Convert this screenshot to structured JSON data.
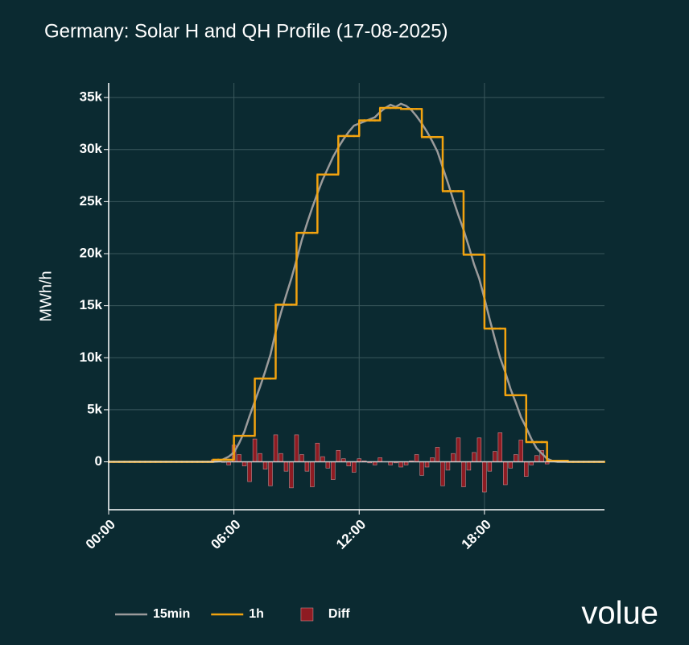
{
  "chart_data": {
    "type": "line",
    "title": "Germany: Solar H and QH Profile (17-08-2025)",
    "y_label": "MWh/h",
    "x": [
      0,
      0.25,
      0.5,
      0.75,
      1,
      1.25,
      1.5,
      1.75,
      2,
      2.25,
      2.5,
      2.75,
      3,
      3.25,
      3.5,
      3.75,
      4,
      4.25,
      4.5,
      4.75,
      5,
      5.25,
      5.5,
      5.75,
      6,
      6.25,
      6.5,
      6.75,
      7,
      7.25,
      7.5,
      7.75,
      8,
      8.25,
      8.5,
      8.75,
      9,
      9.25,
      9.5,
      9.75,
      10,
      10.25,
      10.5,
      10.75,
      11,
      11.25,
      11.5,
      11.75,
      12,
      12.25,
      12.5,
      12.75,
      13,
      13.25,
      13.5,
      13.75,
      14,
      14.25,
      14.5,
      14.75,
      15,
      15.25,
      15.5,
      15.75,
      16,
      16.25,
      16.5,
      16.75,
      17,
      17.25,
      17.5,
      17.75,
      18,
      18.25,
      18.5,
      18.75,
      19,
      19.25,
      19.5,
      19.75,
      20,
      20.25,
      20.5,
      20.75,
      21,
      21.25,
      21.5,
      21.75,
      22,
      22.25,
      22.5,
      22.75,
      23,
      23.25,
      23.5,
      23.75
    ],
    "series": [
      {
        "name": "15min",
        "color": "#9b9b9b",
        "style": "line",
        "values": [
          0,
          0,
          0,
          0,
          0,
          0,
          0,
          0,
          0,
          0,
          0,
          0,
          0,
          0,
          0,
          0,
          0,
          0,
          0,
          0,
          0,
          50,
          250,
          500,
          900,
          1800,
          2900,
          4400,
          5800,
          7200,
          8700,
          10300,
          12500,
          14300,
          16000,
          17600,
          19400,
          21300,
          22900,
          24400,
          25800,
          27100,
          28200,
          29300,
          30200,
          31000,
          31700,
          32300,
          32500,
          32700,
          32900,
          33100,
          33600,
          34000,
          34300,
          34100,
          34400,
          34200,
          33800,
          33200,
          32500,
          31700,
          30800,
          29800,
          28300,
          26800,
          25200,
          23700,
          22300,
          20700,
          19000,
          17600,
          15700,
          13700,
          11800,
          10000,
          8600,
          7000,
          5700,
          4300,
          3300,
          2200,
          1300,
          800,
          300,
          100,
          0,
          0,
          0,
          0,
          0,
          0,
          0,
          0,
          0,
          0
        ]
      },
      {
        "name": "1h",
        "color": "#f2a30f",
        "style": "step",
        "values": [
          0,
          0,
          0,
          0,
          0,
          0,
          0,
          0,
          0,
          0,
          0,
          0,
          0,
          0,
          0,
          0,
          0,
          0,
          0,
          0,
          200,
          200,
          200,
          200,
          2500,
          2500,
          2500,
          2500,
          8000,
          8000,
          8000,
          8000,
          15100,
          15100,
          15100,
          15100,
          22000,
          22000,
          22000,
          22000,
          27600,
          27600,
          27600,
          27600,
          31300,
          31300,
          31300,
          31300,
          32800,
          32800,
          32800,
          32800,
          34000,
          34000,
          34000,
          34000,
          33900,
          33900,
          33900,
          33900,
          31200,
          31200,
          31200,
          31200,
          26000,
          26000,
          26000,
          26000,
          19900,
          19900,
          19900,
          19900,
          12800,
          12800,
          12800,
          12800,
          6400,
          6400,
          6400,
          6400,
          1900,
          1900,
          1900,
          1900,
          100,
          100,
          100,
          100,
          0,
          0,
          0,
          0,
          0,
          0,
          0,
          0
        ]
      },
      {
        "name": "Diff",
        "color": "#8e1b22",
        "style": "bar",
        "values": [
          0,
          0,
          0,
          0,
          0,
          0,
          0,
          0,
          0,
          0,
          0,
          0,
          0,
          0,
          0,
          0,
          0,
          0,
          0,
          0,
          200,
          150,
          -50,
          -300,
          1600,
          700,
          -400,
          -1900,
          2200,
          800,
          -700,
          -2300,
          2600,
          800,
          -900,
          -2500,
          2600,
          700,
          -900,
          -2400,
          1800,
          500,
          -600,
          -1700,
          1100,
          300,
          -400,
          -1000,
          300,
          100,
          -100,
          -300,
          400,
          0,
          -300,
          -100,
          -500,
          -300,
          100,
          700,
          -1300,
          -500,
          400,
          1400,
          -2300,
          -800,
          800,
          2300,
          -2400,
          -800,
          900,
          2300,
          -2900,
          -900,
          1000,
          2800,
          -2200,
          -600,
          700,
          2100,
          -1400,
          -300,
          600,
          1100,
          -200,
          0,
          100,
          100,
          0,
          0,
          0,
          0,
          0,
          0,
          0,
          0
        ]
      }
    ],
    "xlim": [
      0,
      23.75
    ],
    "xticks": [
      {
        "value": 0,
        "label": "00:00"
      },
      {
        "value": 6,
        "label": "06:00"
      },
      {
        "value": 12,
        "label": "12:00"
      },
      {
        "value": 18,
        "label": "18:00"
      }
    ],
    "ylim": [
      -4600,
      36400
    ],
    "yticks": [
      0,
      {
        "value": 5000,
        "label": "5k"
      },
      {
        "value": 10000,
        "label": "10k"
      },
      {
        "value": 15000,
        "label": "15k"
      },
      {
        "value": 20000,
        "label": "20k"
      },
      {
        "value": 25000,
        "label": "25k"
      },
      {
        "value": 30000,
        "label": "30k"
      },
      {
        "value": 35000,
        "label": "35k"
      }
    ],
    "grid": true,
    "legend": "bottom"
  },
  "logo": "volue"
}
